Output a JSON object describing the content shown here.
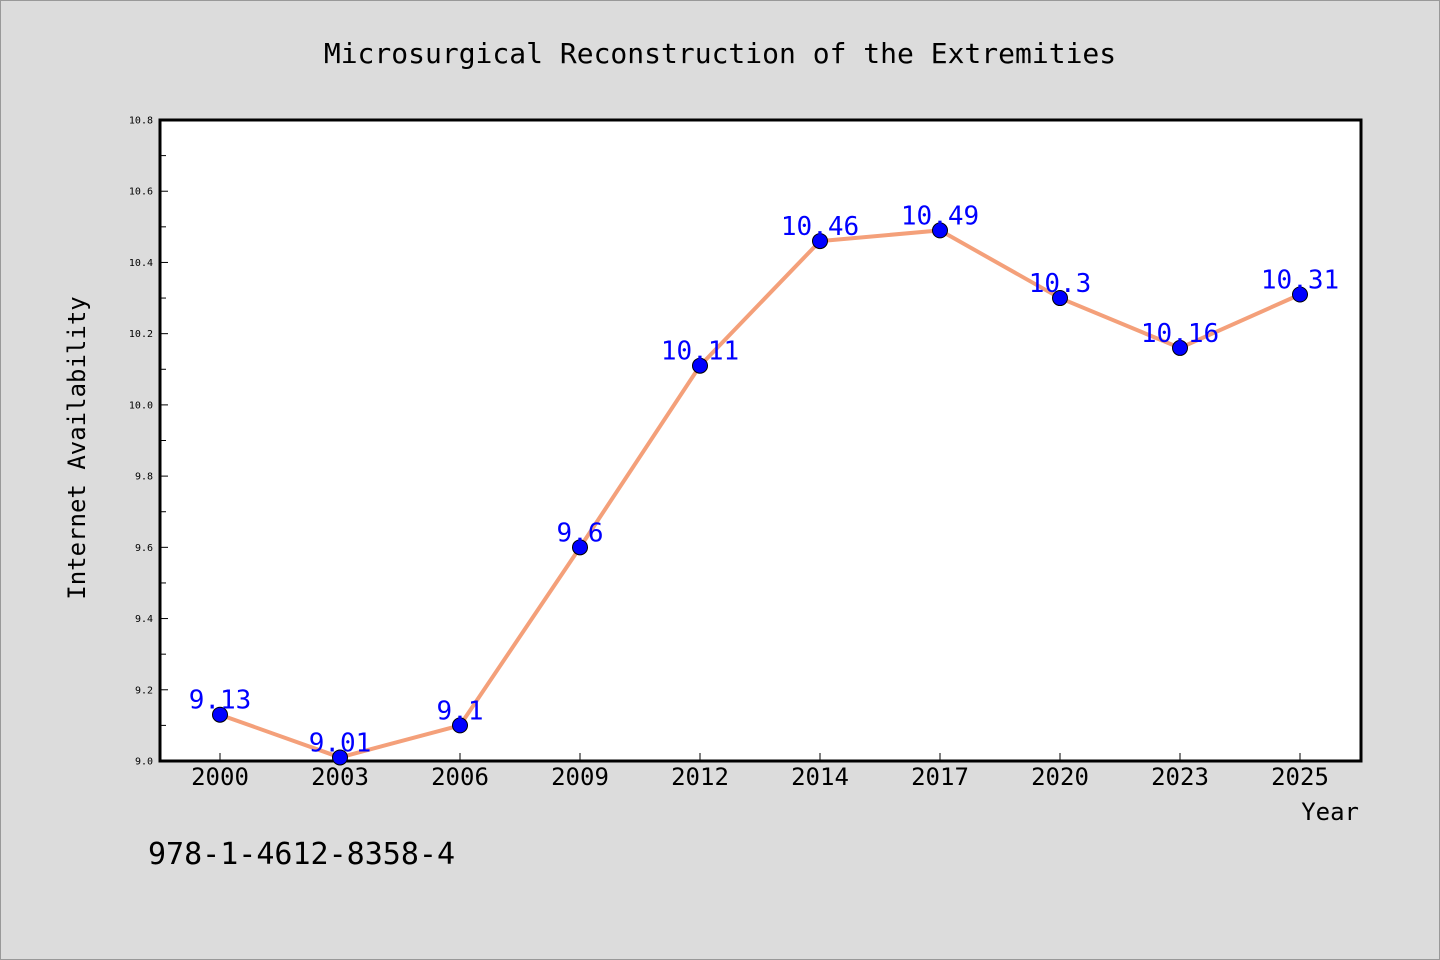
{
  "chart_data": {
    "type": "line",
    "title": "Microsurgical Reconstruction of the Extremities",
    "xlabel": "Year",
    "ylabel": "Internet Availability",
    "categories": [
      "2000",
      "2003",
      "2006",
      "2009",
      "2012",
      "2014",
      "2017",
      "2020",
      "2023",
      "2025"
    ],
    "series": [
      {
        "values": [
          9.13,
          9.01,
          9.1,
          9.6,
          10.11,
          10.46,
          10.49,
          10.3,
          10.16,
          10.31
        ],
        "data_labels": [
          "9.13",
          "9.01",
          "9.1",
          "9.6",
          "10.11",
          "10.46",
          "10.49",
          "10.3",
          "10.16",
          "10.31"
        ]
      }
    ],
    "ylim": [
      9.0,
      10.8
    ],
    "yticks": [
      "9.0",
      "9.2",
      "9.4",
      "9.6",
      "9.8",
      "10.0",
      "10.2",
      "10.4",
      "10.6",
      "10.8"
    ],
    "grid": false,
    "legend": "none",
    "annotation": "978-1-4612-8358-4",
    "colors": {
      "background": "#dcdcdc",
      "plot_background": "#ffffff",
      "line": "#f4a07a",
      "marker": "#0000ff",
      "data_label": "#0000ff",
      "text": "#000000"
    }
  }
}
